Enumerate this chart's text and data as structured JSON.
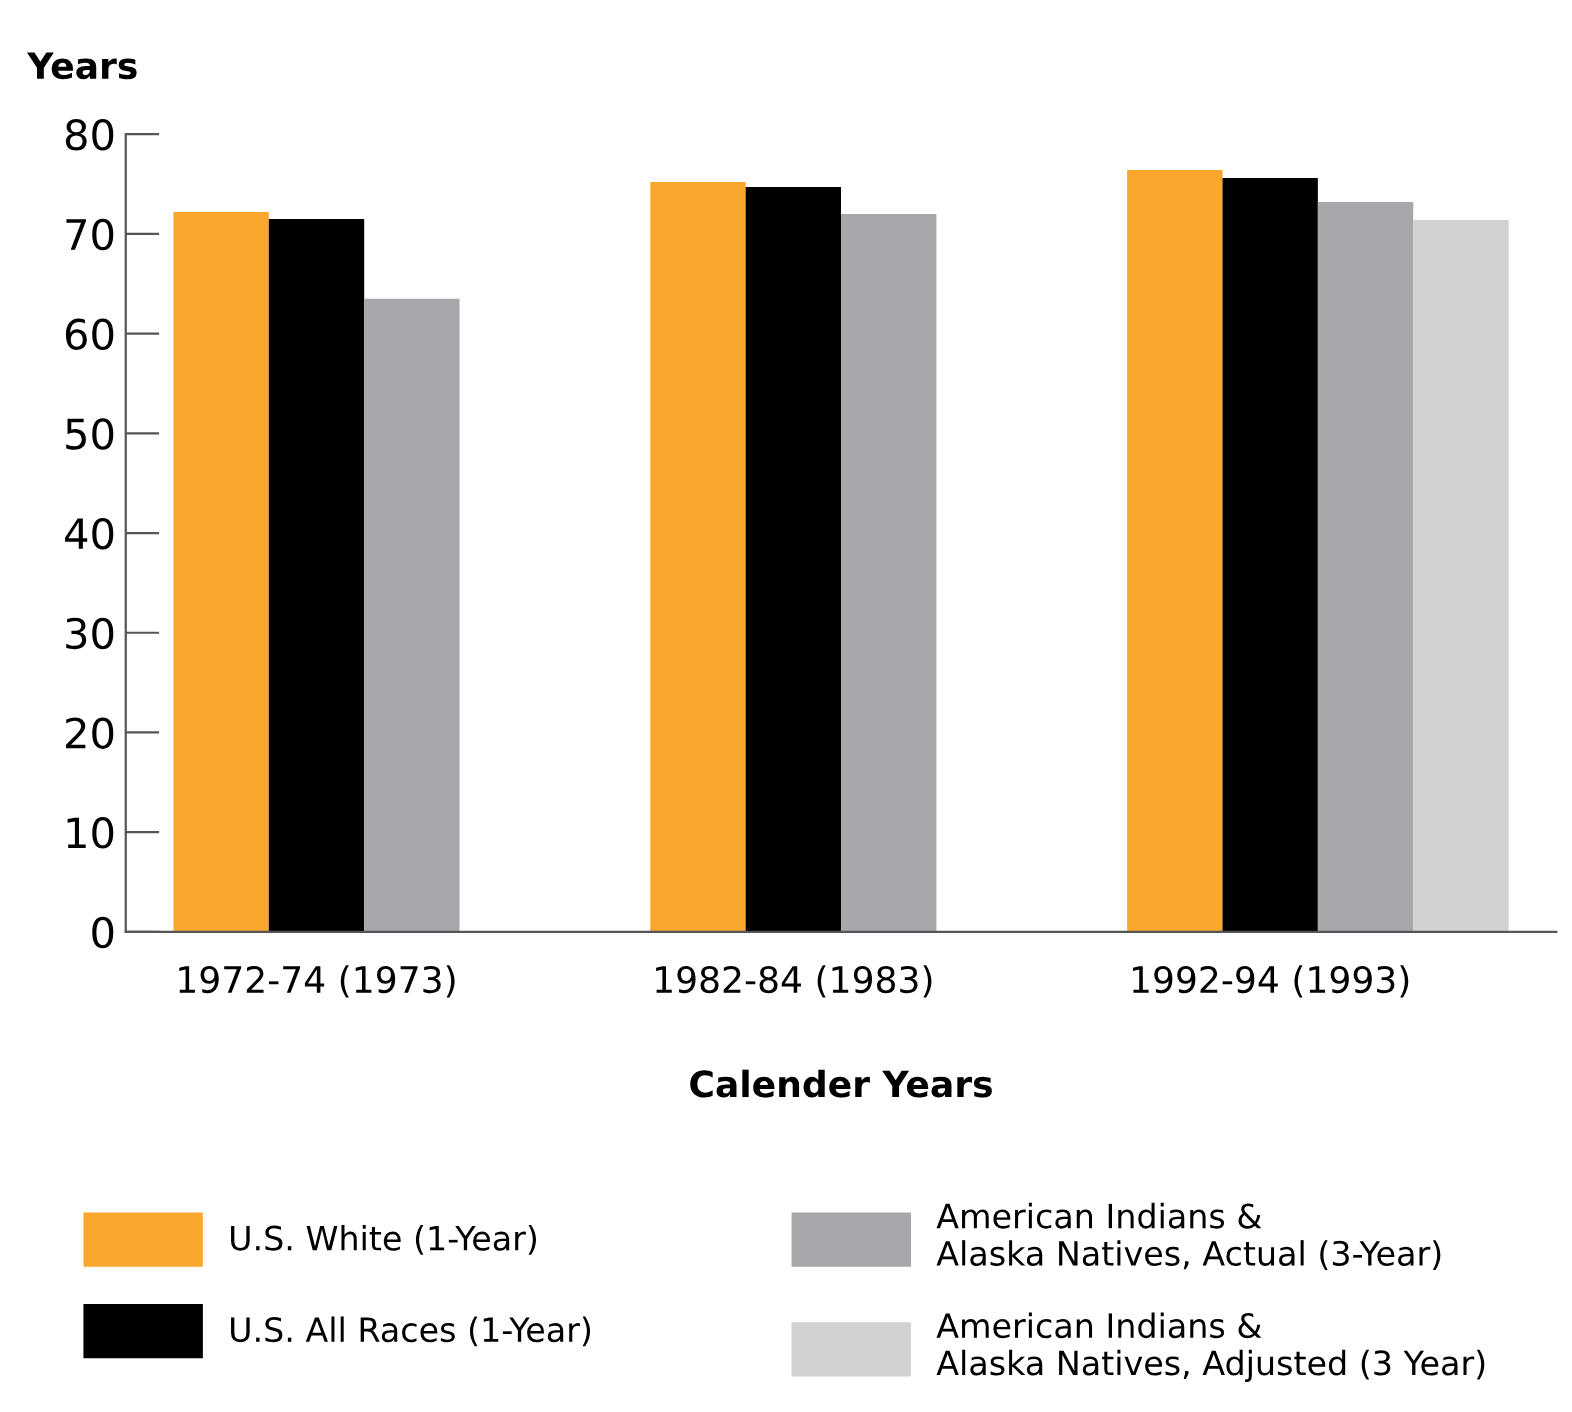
{
  "chart_data": {
    "type": "bar",
    "ylabel": "Years",
    "xlabel": "Calender Years",
    "categories": [
      "1972-74 (1973)",
      "1982-84 (1983)",
      "1992-94 (1993)"
    ],
    "series": [
      {
        "name": "U.S. White (1-Year)",
        "color": "#f9a82d",
        "values": [
          72.2,
          75.2,
          76.4
        ]
      },
      {
        "name": "U.S. All Races (1-Year)",
        "color": "#000000",
        "values": [
          71.5,
          74.7,
          75.6
        ]
      },
      {
        "name": "American Indians &\nAlaska Natives, Actual (3-Year)",
        "color": "#a7a8ab",
        "values": [
          63.5,
          72.0,
          73.2
        ]
      },
      {
        "name": "American Indians &\nAlaska Natives, Adjusted (3 Year)",
        "color": "#d1d2d4",
        "values": [
          null,
          null,
          71.4
        ]
      }
    ],
    "ylim": [
      0,
      80
    ],
    "yticks": [
      0,
      10,
      20,
      30,
      40,
      50,
      60,
      70,
      80
    ],
    "grid": false,
    "legend": "bottom"
  }
}
